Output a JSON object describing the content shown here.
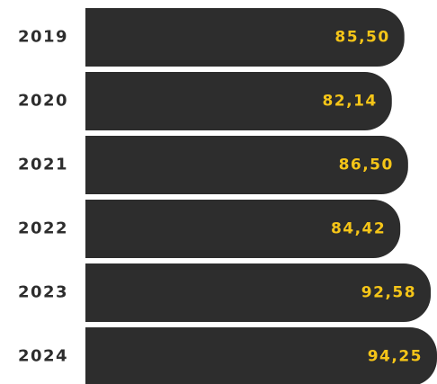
{
  "chart_data": {
    "type": "bar",
    "orientation": "horizontal",
    "categories": [
      "2019",
      "2020",
      "2021",
      "2022",
      "2023",
      "2024"
    ],
    "values": [
      85.5,
      82.14,
      86.5,
      84.42,
      92.58,
      94.25
    ],
    "value_labels": [
      "85,50",
      "82,14",
      "86,50",
      "84,42",
      "92,58",
      "94,25"
    ],
    "color": "#2d2d2d",
    "label_color": "#f5c518"
  }
}
